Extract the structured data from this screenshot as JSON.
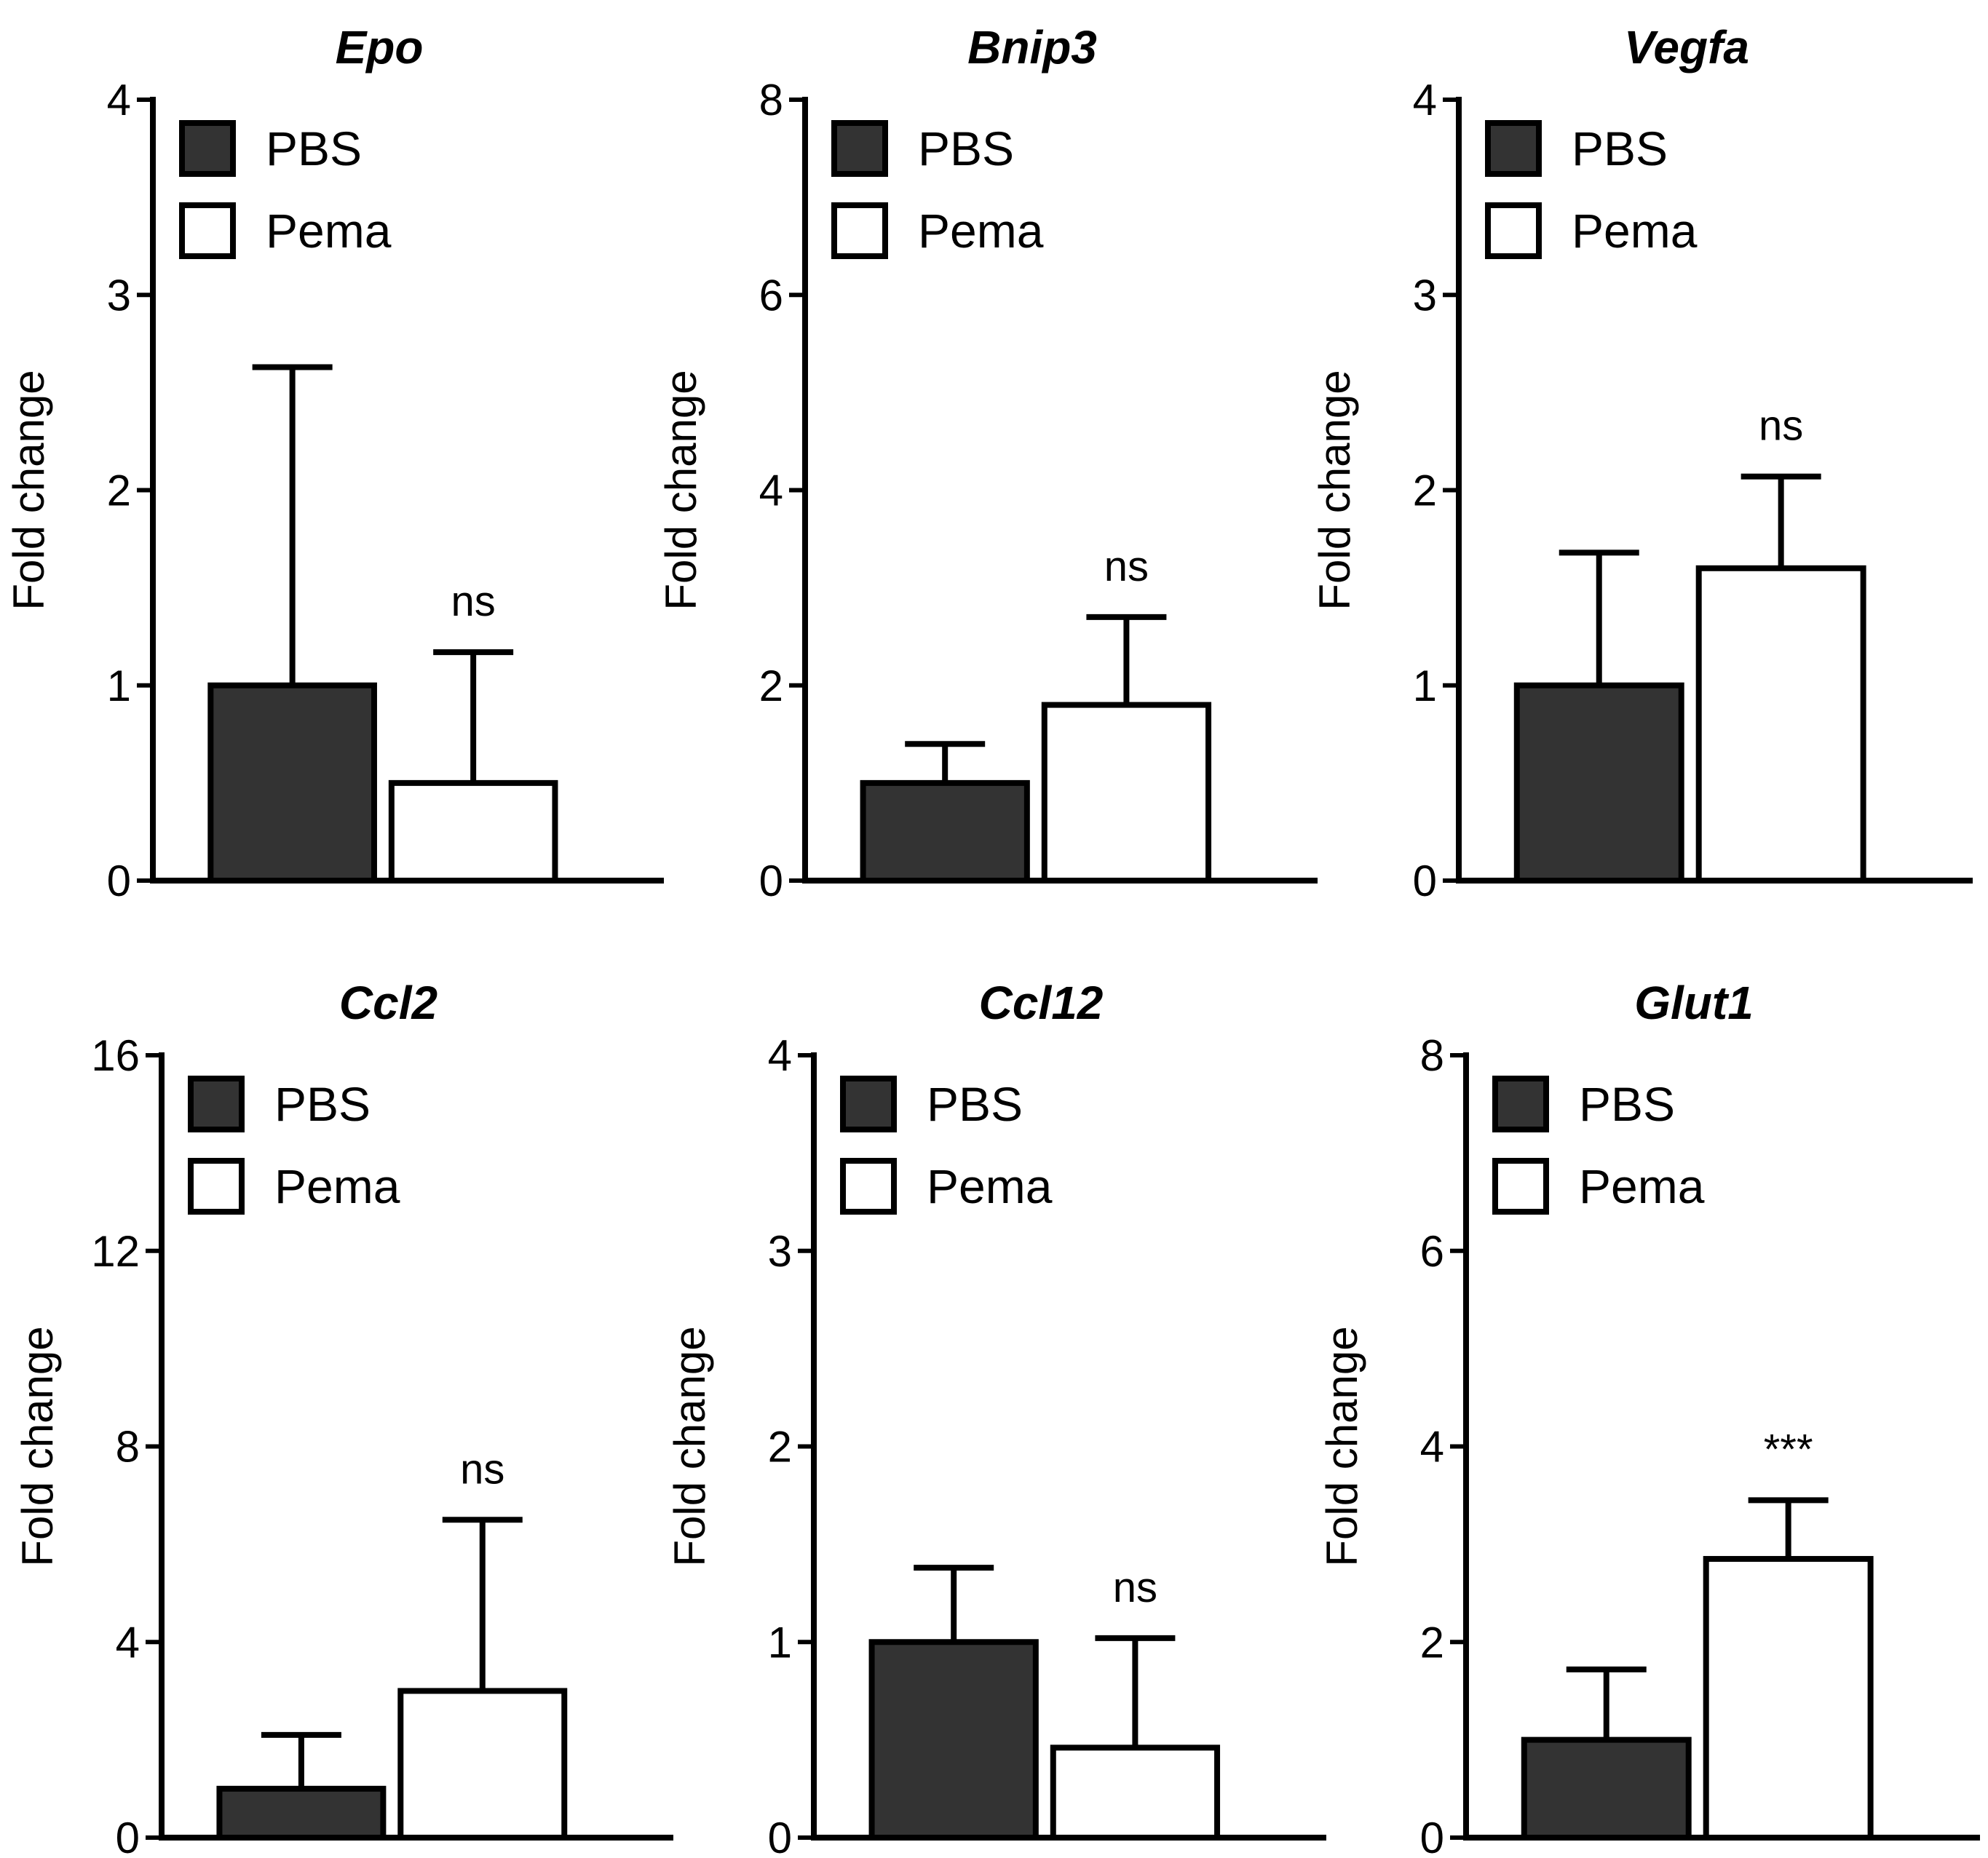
{
  "chart_data": [
    {
      "type": "bar",
      "title": "Epo",
      "ylabel": "Fold change",
      "ylim": [
        0,
        4
      ],
      "yticks": [
        "0",
        "1",
        "2",
        "3",
        "4"
      ],
      "legend": {
        "position": "top-left",
        "entries": [
          "PBS",
          "Pema"
        ]
      },
      "series": [
        {
          "name": "PBS",
          "value": 1.0,
          "error": 1.63,
          "annotation": "",
          "color": "#333333"
        },
        {
          "name": "Pema",
          "value": 0.5,
          "error": 0.67,
          "annotation": "ns",
          "color": "#ffffff"
        }
      ]
    },
    {
      "type": "bar",
      "title": "Bnip3",
      "ylabel": "Fold change",
      "ylim": [
        0,
        8
      ],
      "yticks": [
        "0",
        "2",
        "4",
        "6",
        "8"
      ],
      "legend": {
        "position": "top-left",
        "entries": [
          "PBS",
          "Pema"
        ]
      },
      "series": [
        {
          "name": "PBS",
          "value": 1.0,
          "error": 0.4,
          "annotation": "",
          "color": "#333333"
        },
        {
          "name": "Pema",
          "value": 1.8,
          "error": 0.9,
          "annotation": "ns",
          "color": "#ffffff"
        }
      ]
    },
    {
      "type": "bar",
      "title": "Vegfa",
      "ylabel": "Fold change",
      "ylim": [
        0,
        4
      ],
      "yticks": [
        "0",
        "1",
        "2",
        "3",
        "4"
      ],
      "legend": {
        "position": "top-left",
        "entries": [
          "PBS",
          "Pema"
        ]
      },
      "series": [
        {
          "name": "PBS",
          "value": 1.0,
          "error": 0.68,
          "annotation": "",
          "color": "#333333"
        },
        {
          "name": "Pema",
          "value": 1.6,
          "error": 0.47,
          "annotation": "ns",
          "color": "#ffffff"
        }
      ]
    },
    {
      "type": "bar",
      "title": "Ccl2",
      "ylabel": "Fold change",
      "ylim": [
        0,
        16
      ],
      "yticks": [
        "0",
        "4",
        "8",
        "12",
        "16"
      ],
      "legend": {
        "position": "top-left",
        "entries": [
          "PBS",
          "Pema"
        ]
      },
      "series": [
        {
          "name": "PBS",
          "value": 1.0,
          "error": 1.1,
          "annotation": "",
          "color": "#333333"
        },
        {
          "name": "Pema",
          "value": 3.0,
          "error": 3.5,
          "annotation": "ns",
          "color": "#ffffff"
        }
      ]
    },
    {
      "type": "bar",
      "title": "Ccl12",
      "ylabel": "Fold change",
      "ylim": [
        0,
        4
      ],
      "yticks": [
        "0",
        "1",
        "2",
        "3",
        "4"
      ],
      "legend": {
        "position": "top-left",
        "entries": [
          "PBS",
          "Pema"
        ]
      },
      "series": [
        {
          "name": "PBS",
          "value": 1.0,
          "error": 0.38,
          "annotation": "",
          "color": "#333333"
        },
        {
          "name": "Pema",
          "value": 0.46,
          "error": 0.56,
          "annotation": "ns",
          "color": "#ffffff"
        }
      ]
    },
    {
      "type": "bar",
      "title": "Glut1",
      "ylabel": "Fold change",
      "ylim": [
        0,
        8
      ],
      "yticks": [
        "0",
        "2",
        "4",
        "6",
        "8"
      ],
      "legend": {
        "position": "top-left",
        "entries": [
          "PBS",
          "Pema"
        ]
      },
      "series": [
        {
          "name": "PBS",
          "value": 1.0,
          "error": 0.72,
          "annotation": "",
          "color": "#333333"
        },
        {
          "name": "Pema",
          "value": 2.85,
          "error": 0.6,
          "annotation": "***",
          "color": "#ffffff"
        }
      ]
    }
  ]
}
